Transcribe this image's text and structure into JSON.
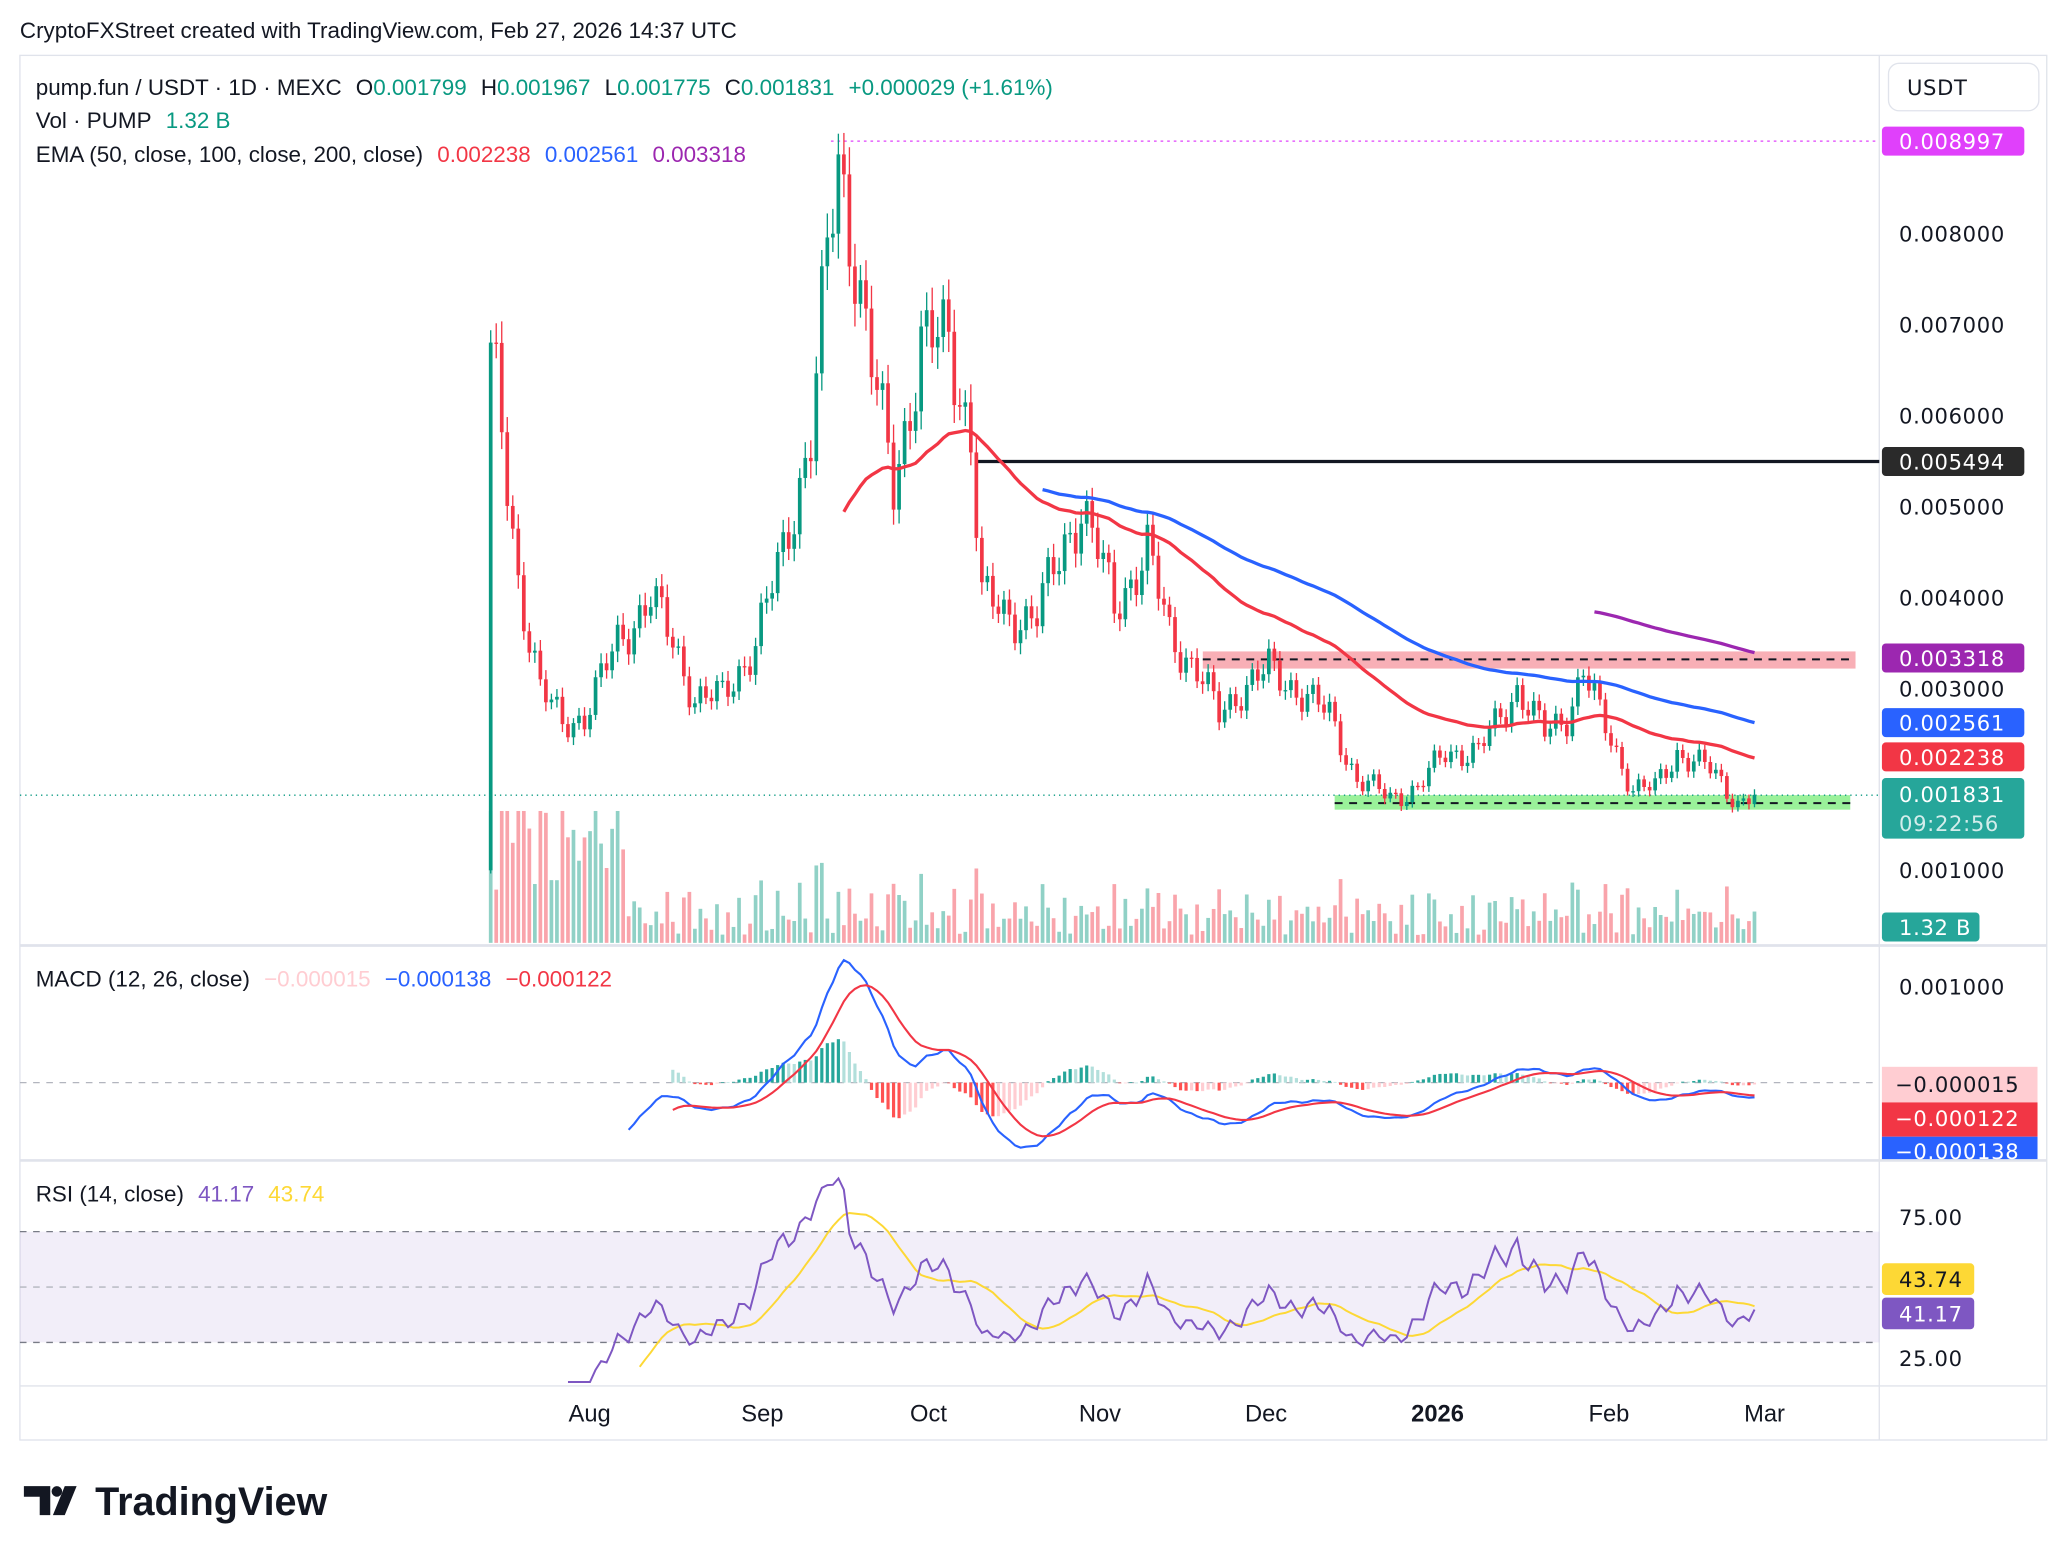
{
  "header": {
    "attribution": "CryptoFXStreet created with TradingView.com, Feb 27, 2026 14:37 UTC"
  },
  "legend": {
    "symbol": "pump.fun / USDT · 1D · MEXC",
    "o_label": "O",
    "o": "0.001799",
    "h_label": "H",
    "h": "0.001967",
    "l_label": "L",
    "l": "0.001775",
    "c_label": "C",
    "c": "0.001831",
    "change": "+0.000029 (+1.61%)",
    "vol_label": "Vol · PUMP",
    "vol": "1.32 B",
    "ema_label": "EMA (50, close, 100, close, 200, close)",
    "ema50": "0.002238",
    "ema100": "0.002561",
    "ema200": "0.003318",
    "macd_label": "MACD (12, 26, close)",
    "macd_hist": "−0.000015",
    "macd_line": "−0.000138",
    "macd_signal": "−0.000122",
    "rsi_label": "RSI (14, close)",
    "rsi": "41.17",
    "rsi_ma": "43.74"
  },
  "price_axis": {
    "currency_button": "USDT",
    "ticks": [
      "0.008000",
      "0.007000",
      "0.006000",
      "0.005000",
      "0.004000",
      "0.003000",
      "0.001000"
    ],
    "tag_high": "0.008997",
    "tag_resistance": "0.005494",
    "tag_ema200": "0.003318",
    "tag_ema100": "0.002561",
    "tag_ema50": "0.002238",
    "tag_last": "0.001831",
    "tag_countdown": "09:22:56",
    "tag_volume": "1.32 B",
    "macd_tick": "0.001000",
    "macd_tag_hist": "−0.000015",
    "macd_tag_signal": "−0.000122",
    "macd_tag_line": "−0.000138",
    "rsi_ticks": [
      "75.00",
      "25.00"
    ],
    "rsi_tag_ma": "43.74",
    "rsi_tag": "41.17"
  },
  "time_axis": {
    "labels": [
      "Aug",
      "Sep",
      "Oct",
      "Nov",
      "Dec",
      "2026",
      "Feb",
      "Mar"
    ]
  },
  "footer": {
    "brand": "TradingView"
  },
  "colors": {
    "up": "#089981",
    "down": "#f23645",
    "ema50": "#f23645",
    "ema100": "#2962ff",
    "ema200": "#9c27b0",
    "rsi": "#7e57c2",
    "rsi_ma": "#fdd835",
    "high_line": "#e040fb"
  },
  "chart_data": {
    "type": "candlestick",
    "title": "pump.fun / USDT · 1D · MEXC",
    "x_unit": "days since Jul 14 2025",
    "ylim": [
      0.0007,
      0.0093
    ],
    "close_keypoints": [
      [
        0,
        0.0068
      ],
      [
        3,
        0.0052
      ],
      [
        5,
        0.0042
      ],
      [
        9,
        0.003
      ],
      [
        13,
        0.0026
      ],
      [
        17,
        0.0027
      ],
      [
        23,
        0.0035
      ],
      [
        29,
        0.004
      ],
      [
        33,
        0.0035
      ],
      [
        37,
        0.0029
      ],
      [
        42,
        0.0029
      ],
      [
        48,
        0.0035
      ],
      [
        53,
        0.0045
      ],
      [
        58,
        0.0058
      ],
      [
        61,
        0.0077
      ],
      [
        63,
        0.0087
      ],
      [
        66,
        0.0078
      ],
      [
        70,
        0.0062
      ],
      [
        73,
        0.0052
      ],
      [
        78,
        0.0068
      ],
      [
        83,
        0.0068
      ],
      [
        87,
        0.0058
      ],
      [
        89,
        0.004
      ],
      [
        93,
        0.0038
      ],
      [
        99,
        0.0038
      ],
      [
        104,
        0.0046
      ],
      [
        107,
        0.005
      ],
      [
        110,
        0.0045
      ],
      [
        113,
        0.0039
      ],
      [
        119,
        0.0045
      ],
      [
        123,
        0.0036
      ],
      [
        128,
        0.0032
      ],
      [
        132,
        0.0027
      ],
      [
        136,
        0.003
      ],
      [
        141,
        0.0032
      ],
      [
        146,
        0.003
      ],
      [
        152,
        0.0027
      ],
      [
        157,
        0.002
      ],
      [
        163,
        0.0018
      ],
      [
        168,
        0.0019
      ],
      [
        173,
        0.0023
      ],
      [
        179,
        0.0023
      ],
      [
        186,
        0.003
      ],
      [
        191,
        0.0025
      ],
      [
        195,
        0.0027
      ],
      [
        198,
        0.0032
      ],
      [
        201,
        0.0027
      ],
      [
        207,
        0.0019
      ],
      [
        211,
        0.0019
      ],
      [
        215,
        0.0023
      ],
      [
        221,
        0.0021
      ],
      [
        226,
        0.00175
      ],
      [
        229,
        0.00183
      ]
    ],
    "first_open": 0.001,
    "levels": {
      "resistance": 0.005494,
      "supply_zone": [
        0.00322,
        0.0034
      ],
      "demand_zone": [
        0.00163,
        0.00179
      ],
      "all_time_high": 0.008997,
      "last": 0.001831
    },
    "indicators": [
      "EMA 50",
      "EMA 100",
      "EMA 200",
      "Volume",
      "MACD (12,26,9)",
      "RSI (14) + MA"
    ],
    "x_ticks": [
      "Aug",
      "Sep",
      "Oct",
      "Nov",
      "Dec",
      "2026",
      "Feb",
      "Mar"
    ]
  }
}
